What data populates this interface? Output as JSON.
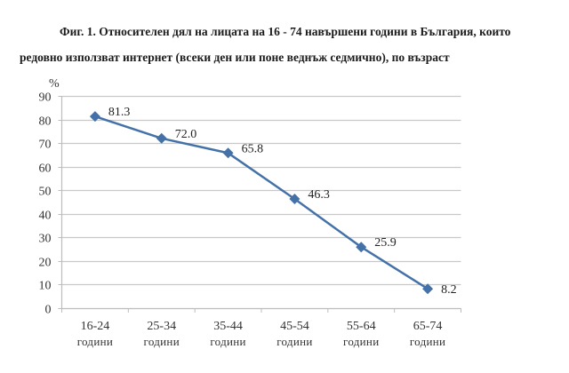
{
  "title": {
    "line1": "Фиг. 1. Относителен дял на лицата на 16 - 74 навършени години в България, които",
    "line2": "редовно използват интернет (всеки ден или поне веднъж седмично), по възраст"
  },
  "chart_data": {
    "type": "line",
    "title": "Фиг. 1. Относителен дял на лицата на 16 - 74 навършени години в България, които редовно използват интернет (всеки ден или поне веднъж седмично), по възраст",
    "xlabel": "",
    "ylabel": "%",
    "categories": [
      "16-24 години",
      "25-34 години",
      "35-44 години",
      "45-54 години",
      "55-64 години",
      "65-74 години"
    ],
    "category_lines": [
      [
        "16-24",
        "години"
      ],
      [
        "25-34",
        "години"
      ],
      [
        "35-44",
        "години"
      ],
      [
        "45-54",
        "години"
      ],
      [
        "55-64",
        "години"
      ],
      [
        "65-74",
        "години"
      ]
    ],
    "series": [
      {
        "name": "Относителен дял",
        "values": [
          81.3,
          72.0,
          65.8,
          46.3,
          25.9,
          8.2
        ],
        "labels": [
          "81.3",
          "72.0",
          "65.8",
          "46.3",
          "25.9",
          "8.2"
        ]
      }
    ],
    "ylim": [
      0,
      90
    ],
    "yticks": [
      0,
      10,
      20,
      30,
      40,
      50,
      60,
      70,
      80,
      90
    ],
    "grid": true,
    "legend": "none",
    "marker": "diamond",
    "line_color": "#4472a8"
  }
}
